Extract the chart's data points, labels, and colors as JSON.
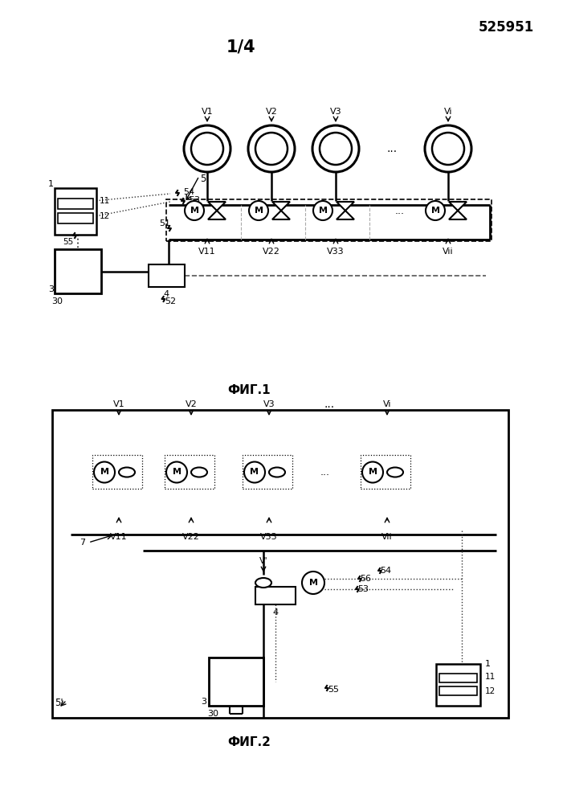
{
  "patent_number": "525951",
  "page_label": "1/4",
  "fig1_label": "ФИГ.1",
  "fig2_label": "ФИГ.2",
  "background": "#ffffff",
  "line_color": "#000000"
}
